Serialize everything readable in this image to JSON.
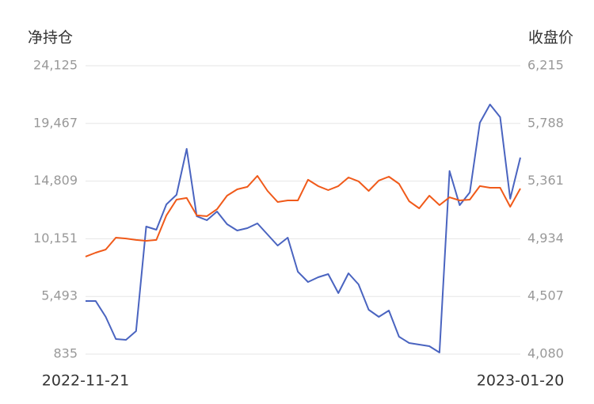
{
  "chart_data": {
    "type": "line",
    "y_label": "净持仓",
    "y2_label": "收盘价",
    "categories": [
      "2022-11-21",
      null,
      null,
      null,
      null,
      null,
      null,
      null,
      null,
      null,
      null,
      null,
      null,
      null,
      null,
      null,
      null,
      null,
      null,
      null,
      null,
      null,
      null,
      null,
      null,
      null,
      null,
      null,
      null,
      null,
      null,
      null,
      null,
      null,
      null,
      null,
      null,
      null,
      null,
      null,
      null,
      null,
      null,
      "2023-01-20"
    ],
    "ylim": [
      835,
      24125
    ],
    "yticks": [
      {
        "value": 835,
        "label": "835"
      },
      {
        "value": 5493,
        "label": "5,493"
      },
      {
        "value": 10151,
        "label": "10,151"
      },
      {
        "value": 14809,
        "label": "14,809"
      },
      {
        "value": 19467,
        "label": "19,467"
      },
      {
        "value": 24125,
        "label": "24,125"
      }
    ],
    "y2lim": [
      4080,
      6215
    ],
    "y2ticks": [
      {
        "value": 4080,
        "label": "4,080"
      },
      {
        "value": 4507,
        "label": "4,507"
      },
      {
        "value": 4934,
        "label": "4,934"
      },
      {
        "value": 5361,
        "label": "5,361"
      },
      {
        "value": 5788,
        "label": "5,788"
      },
      {
        "value": 6215,
        "label": "6,215"
      }
    ],
    "grid": true,
    "series": [
      {
        "color": "#4a64c0",
        "values": [
          5123,
          5123,
          3843,
          2051,
          1987,
          2691,
          11139,
          10883,
          12931,
          13699,
          17411,
          11971,
          11651,
          12355,
          11331,
          10819,
          11011,
          11395,
          10499,
          9603,
          10243,
          7491,
          6659,
          7043,
          7299,
          5763,
          7363,
          6467,
          4419,
          3843,
          4355,
          2243,
          1731,
          1603,
          1475,
          963,
          15619,
          12867,
          13891,
          19523,
          20995,
          19971,
          13379,
          16707
        ]
      },
      {
        "color": "#f05a1a",
        "axis": "y2",
        "values": [
          4802,
          4831,
          4854,
          4942,
          4936,
          4925,
          4919,
          4925,
          5107,
          5224,
          5236,
          5107,
          5101,
          5153,
          5253,
          5300,
          5318,
          5400,
          5288,
          5206,
          5218,
          5218,
          5371,
          5324,
          5294,
          5324,
          5388,
          5359,
          5288,
          5365,
          5394,
          5341,
          5212,
          5159,
          5253,
          5183,
          5241,
          5218,
          5224,
          5324,
          5312,
          5312,
          5171,
          5306
        ]
      }
    ]
  }
}
